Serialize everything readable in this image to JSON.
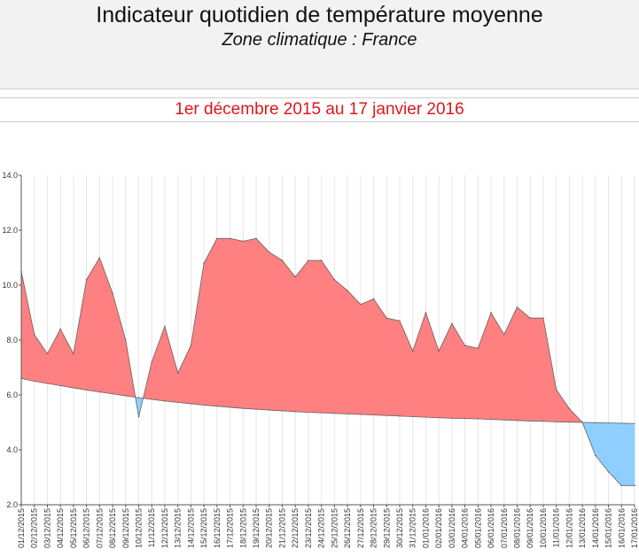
{
  "header": {
    "title": "Indicateur quotidien de température moyenne",
    "subtitle": "Zone climatique : France"
  },
  "period_label": "1er décembre 2015 au 17 janvier 2016",
  "colors": {
    "above": "#ff8080",
    "below": "#8fcfff",
    "stroke": "#666666",
    "grid": "#e6e6e6"
  },
  "chart_data": {
    "type": "area",
    "ylim": [
      2.0,
      14.0
    ],
    "yticks": [
      "2.0",
      "4.0",
      "6.0",
      "8.0",
      "10.0",
      "12.0",
      "14.0"
    ],
    "categories": [
      "01/12/2015",
      "02/12/2015",
      "03/12/2015",
      "04/12/2015",
      "05/12/2015",
      "06/12/2015",
      "07/12/2015",
      "08/12/2015",
      "09/12/2015",
      "10/12/2015",
      "11/12/2015",
      "12/12/2015",
      "13/12/2015",
      "14/12/2015",
      "15/12/2015",
      "16/12/2015",
      "17/12/2015",
      "18/12/2015",
      "19/12/2015",
      "20/12/2015",
      "21/12/2015",
      "22/12/2015",
      "23/12/2015",
      "24/12/2015",
      "25/12/2015",
      "26/12/2015",
      "27/12/2015",
      "28/12/2015",
      "29/12/2015",
      "30/12/2015",
      "31/12/2015",
      "01/01/2016",
      "02/01/2016",
      "03/01/2016",
      "04/01/2016",
      "05/01/2016",
      "06/01/2016",
      "07/01/2016",
      "08/01/2016",
      "09/01/2016",
      "10/01/2016",
      "11/01/2016",
      "12/01/2016",
      "13/01/2016",
      "14/01/2016",
      "15/01/2016",
      "16/01/2016",
      "17/01/2016"
    ],
    "series": [
      {
        "values": [
          10.5,
          8.2,
          7.5,
          8.4,
          7.5,
          10.2,
          11.0,
          9.7,
          8.0,
          5.2,
          7.2,
          8.5,
          6.8,
          7.8,
          10.8,
          11.7,
          11.7,
          11.6,
          11.7,
          11.2,
          10.9,
          10.3,
          10.9,
          10.9,
          10.2,
          9.8,
          9.3,
          9.5,
          8.8,
          8.7,
          7.6,
          9.0,
          7.6,
          8.6,
          7.8,
          7.7,
          9.0,
          8.2,
          9.2,
          8.8,
          8.8,
          6.2,
          5.5,
          5.0,
          3.8,
          3.2,
          2.7,
          2.7
        ]
      },
      {
        "values": [
          6.6,
          6.5,
          6.42,
          6.34,
          6.26,
          6.18,
          6.11,
          6.04,
          5.97,
          5.9,
          5.84,
          5.78,
          5.73,
          5.68,
          5.63,
          5.59,
          5.55,
          5.51,
          5.48,
          5.45,
          5.42,
          5.39,
          5.37,
          5.35,
          5.33,
          5.31,
          5.29,
          5.27,
          5.25,
          5.23,
          5.21,
          5.19,
          5.17,
          5.15,
          5.14,
          5.13,
          5.11,
          5.09,
          5.07,
          5.05,
          5.04,
          5.02,
          5.01,
          5.0,
          4.99,
          4.98,
          4.97,
          4.96
        ]
      }
    ]
  }
}
